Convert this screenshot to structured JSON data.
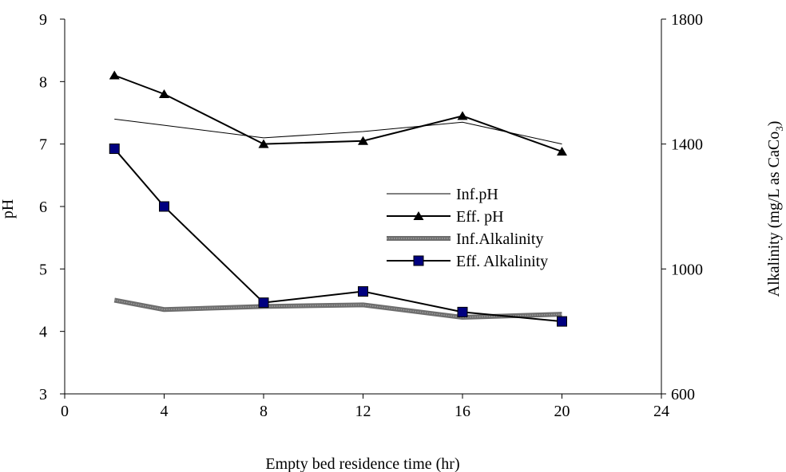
{
  "chart_data": {
    "type": "line",
    "title": "",
    "xlabel": "Empty bed residence time (hr)",
    "ylabel": "pH",
    "y2label": "Alkalinity (mg/L as CaCo3)",
    "y2label_main": "Alkalinity (mg/L as CaCo",
    "y2label_sub": "3",
    "y2label_close": ")",
    "xlim": [
      0,
      24
    ],
    "ylim": [
      3,
      9
    ],
    "y2lim": [
      600,
      1800
    ],
    "xticks": [
      "0",
      "4",
      "8",
      "12",
      "16",
      "20",
      "24"
    ],
    "yticks": [
      "3",
      "4",
      "5",
      "6",
      "7",
      "8",
      "9"
    ],
    "y2ticks": [
      "600",
      "1000",
      "1400",
      "1800"
    ],
    "grid": false,
    "legend_position": "center-right",
    "series": [
      {
        "name": "Inf.pH",
        "axis": "left",
        "style": "thin-line",
        "color": "#000000",
        "x": [
          2,
          4,
          8,
          12,
          16,
          20
        ],
        "y": [
          7.4,
          7.3,
          7.1,
          7.2,
          7.35,
          7.0
        ]
      },
      {
        "name": "Eff. pH",
        "axis": "left",
        "style": "triangle-line",
        "color": "#000000",
        "x": [
          2,
          4,
          8,
          12,
          16,
          20
        ],
        "y": [
          8.1,
          7.8,
          7.0,
          7.05,
          7.45,
          6.88
        ]
      },
      {
        "name": "Inf.Alkalinity",
        "axis": "right",
        "style": "thick-gray-line",
        "color": "#6e6e6e",
        "x": [
          2,
          4,
          8,
          12,
          16,
          20
        ],
        "y": [
          900,
          870,
          880,
          885,
          845,
          855
        ]
      },
      {
        "name": "Eff. Alkalinity",
        "axis": "right",
        "style": "square-line",
        "color": "#000080",
        "x": [
          2,
          4,
          8,
          12,
          16,
          20
        ],
        "y": [
          1385,
          1200,
          892,
          928,
          862,
          832
        ]
      }
    ]
  }
}
